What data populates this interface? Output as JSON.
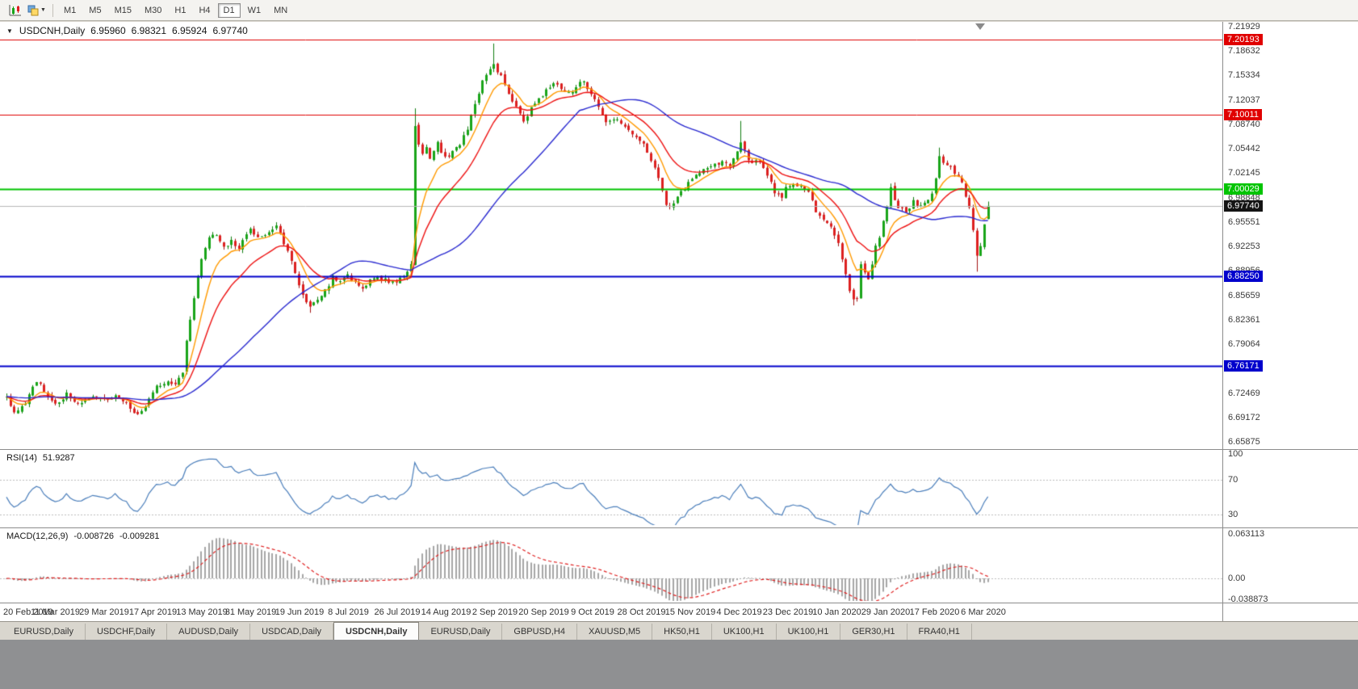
{
  "toolbar": {
    "icons": [
      {
        "name": "chart-type-icon"
      },
      {
        "name": "templates-icon"
      }
    ],
    "timeframes": [
      {
        "label": "M1",
        "active": false
      },
      {
        "label": "M5",
        "active": false
      },
      {
        "label": "M15",
        "active": false
      },
      {
        "label": "M30",
        "active": false
      },
      {
        "label": "H1",
        "active": false
      },
      {
        "label": "H4",
        "active": false
      },
      {
        "label": "D1",
        "active": true
      },
      {
        "label": "W1",
        "active": false
      },
      {
        "label": "MN",
        "active": false
      }
    ]
  },
  "chart": {
    "title": {
      "collapse_icon": "▼",
      "symbol": "USDCNH,Daily",
      "open": "6.95960",
      "high": "6.98321",
      "low": "6.95924",
      "close": "6.97740"
    },
    "price_scale": {
      "ticks": [
        "7.21929",
        "7.18632",
        "7.15334",
        "7.12037",
        "7.08740",
        "7.05442",
        "7.02145",
        "6.98848",
        "6.95551",
        "6.92253",
        "6.88956",
        "6.85659",
        "6.82361",
        "6.79064",
        "6.75767",
        "6.72469",
        "6.69172",
        "6.65875"
      ]
    },
    "levels": [
      {
        "label": "7.20193",
        "price": 7.20193,
        "color": "#e00000",
        "width": 1
      },
      {
        "label": "7.10011",
        "price": 7.10011,
        "color": "#e00000",
        "width": 1
      },
      {
        "label": "7.00029",
        "price": 7.00029,
        "color": "#00c400",
        "width": 2
      },
      {
        "label": "6.88250",
        "price": 6.8825,
        "color": "#0000cc",
        "width": 2
      },
      {
        "label": "6.76171",
        "price": 6.76171,
        "color": "#0000cc",
        "width": 2
      }
    ],
    "current_price": {
      "label": "6.97740",
      "price": 6.9774,
      "bg": "#141414",
      "line_color": "#b8b8b8"
    }
  },
  "rsi": {
    "label": "RSI(14)",
    "value": "51.9287",
    "scale": [
      "100",
      "70",
      "30"
    ],
    "scale_values": [
      100,
      70,
      30
    ],
    "levels": [
      70,
      30
    ],
    "color": "#4a7ebb"
  },
  "macd": {
    "label": "MACD(12,26,9)",
    "value": "-0.008726",
    "signal": "-0.009281",
    "scale": [
      "0.063113",
      "0.00",
      "-0.038873"
    ],
    "hist_color": "#a6a6a6",
    "signal_color": "#e02020"
  },
  "tabs": [
    {
      "label": "EURUSD,Daily",
      "active": false
    },
    {
      "label": "USDCHF,Daily",
      "active": false
    },
    {
      "label": "AUDUSD,Daily",
      "active": false
    },
    {
      "label": "USDCAD,Daily",
      "active": false
    },
    {
      "label": "USDCNH,Daily",
      "active": true
    },
    {
      "label": "EURUSD,Daily",
      "active": false
    },
    {
      "label": "GBPUSD,H4",
      "active": false
    },
    {
      "label": "XAUUSD,M5",
      "active": false
    },
    {
      "label": "HK50,H1",
      "active": false
    },
    {
      "label": "UK100,H1",
      "active": false
    },
    {
      "label": "UK100,H1",
      "active": false
    },
    {
      "label": "GER30,H1",
      "active": false
    },
    {
      "label": "FRA40,H1",
      "active": false
    }
  ],
  "chart_data": {
    "type": "candlestick",
    "symbol": "USDCNH",
    "timeframe": "Daily",
    "price_range": {
      "top": 7.22256,
      "bottom": 6.65114
    },
    "candle_count": 263,
    "x_labels": [
      "20 Feb 2019",
      "11 Mar 2019",
      "29 Mar 2019",
      "17 Apr 2019",
      "13 May 2019",
      "31 May 2019",
      "19 Jun 2019",
      "8 Jul 2019",
      "26 Jul 2019",
      "14 Aug 2019",
      "2 Sep 2019",
      "20 Sep 2019",
      "9 Oct 2019",
      "28 Oct 2019",
      "15 Nov 2019",
      "4 Dec 2019",
      "23 Dec 2019",
      "10 Jan 2020",
      "29 Jan 2020",
      "17 Feb 2020",
      "6 Mar 2020"
    ],
    "close_anchors": [
      [
        0,
        6.718
      ],
      [
        2,
        6.698
      ],
      [
        5,
        6.712
      ],
      [
        8,
        6.74
      ],
      [
        11,
        6.722
      ],
      [
        13,
        6.71
      ],
      [
        16,
        6.722
      ],
      [
        19,
        6.712
      ],
      [
        22,
        6.718
      ],
      [
        26,
        6.714
      ],
      [
        29,
        6.722
      ],
      [
        32,
        6.712
      ],
      [
        34,
        6.7
      ],
      [
        36,
        6.698
      ],
      [
        38,
        6.715
      ],
      [
        40,
        6.732
      ],
      [
        43,
        6.738
      ],
      [
        45,
        6.74
      ],
      [
        47,
        6.752
      ],
      [
        48,
        6.795
      ],
      [
        50,
        6.856
      ],
      [
        52,
        6.906
      ],
      [
        54,
        6.932
      ],
      [
        56,
        6.938
      ],
      [
        58,
        6.92
      ],
      [
        60,
        6.93
      ],
      [
        62,
        6.922
      ],
      [
        65,
        6.945
      ],
      [
        67,
        6.932
      ],
      [
        70,
        6.94
      ],
      [
        72,
        6.948
      ],
      [
        74,
        6.928
      ],
      [
        76,
        6.905
      ],
      [
        78,
        6.872
      ],
      [
        80,
        6.845
      ],
      [
        81,
        6.838
      ],
      [
        83,
        6.852
      ],
      [
        85,
        6.862
      ],
      [
        87,
        6.88
      ],
      [
        89,
        6.878
      ],
      [
        91,
        6.883
      ],
      [
        93,
        6.872
      ],
      [
        95,
        6.868
      ],
      [
        97,
        6.876
      ],
      [
        99,
        6.882
      ],
      [
        101,
        6.876
      ],
      [
        103,
        6.874
      ],
      [
        105,
        6.88
      ],
      [
        107,
        6.888
      ],
      [
        108,
        6.902
      ],
      [
        109,
        7.082
      ],
      [
        110,
        7.062
      ],
      [
        111,
        7.048
      ],
      [
        112,
        7.058
      ],
      [
        113,
        7.044
      ],
      [
        115,
        7.062
      ],
      [
        117,
        7.042
      ],
      [
        119,
        7.052
      ],
      [
        121,
        7.062
      ],
      [
        123,
        7.082
      ],
      [
        125,
        7.112
      ],
      [
        127,
        7.148
      ],
      [
        129,
        7.162
      ],
      [
        130,
        7.172
      ],
      [
        131,
        7.16
      ],
      [
        133,
        7.142
      ],
      [
        135,
        7.12
      ],
      [
        137,
        7.102
      ],
      [
        138,
        7.088
      ],
      [
        140,
        7.108
      ],
      [
        142,
        7.122
      ],
      [
        144,
        7.132
      ],
      [
        146,
        7.146
      ],
      [
        148,
        7.136
      ],
      [
        150,
        7.128
      ],
      [
        152,
        7.14
      ],
      [
        154,
        7.146
      ],
      [
        156,
        7.13
      ],
      [
        158,
        7.108
      ],
      [
        160,
        7.088
      ],
      [
        162,
        7.096
      ],
      [
        164,
        7.088
      ],
      [
        166,
        7.08
      ],
      [
        168,
        7.068
      ],
      [
        170,
        7.058
      ],
      [
        172,
        7.04
      ],
      [
        174,
        7.012
      ],
      [
        176,
        6.982
      ],
      [
        177,
        6.976
      ],
      [
        179,
        6.99
      ],
      [
        181,
        7.002
      ],
      [
        183,
        7.012
      ],
      [
        185,
        7.022
      ],
      [
        187,
        7.028
      ],
      [
        189,
        7.032
      ],
      [
        191,
        7.036
      ],
      [
        193,
        7.03
      ],
      [
        195,
        7.048
      ],
      [
        196,
        7.064
      ],
      [
        197,
        7.05
      ],
      [
        198,
        7.04
      ],
      [
        200,
        7.036
      ],
      [
        202,
        7.03
      ],
      [
        204,
        7.012
      ],
      [
        205,
        6.996
      ],
      [
        207,
        6.986
      ],
      [
        208,
        7.0
      ],
      [
        210,
        7.004
      ],
      [
        212,
        7.002
      ],
      [
        214,
        6.996
      ],
      [
        216,
        6.968
      ],
      [
        218,
        6.962
      ],
      [
        220,
        6.95
      ],
      [
        222,
        6.93
      ],
      [
        224,
        6.882
      ],
      [
        226,
        6.848
      ],
      [
        227,
        6.852
      ],
      [
        228,
        6.896
      ],
      [
        229,
        6.886
      ],
      [
        230,
        6.88
      ],
      [
        231,
        6.896
      ],
      [
        232,
        6.926
      ],
      [
        233,
        6.936
      ],
      [
        234,
        6.956
      ],
      [
        235,
        6.978
      ],
      [
        236,
        7.0
      ],
      [
        237,
        6.986
      ],
      [
        238,
        6.976
      ],
      [
        240,
        6.97
      ],
      [
        242,
        6.984
      ],
      [
        244,
        6.976
      ],
      [
        246,
        6.986
      ],
      [
        247,
        6.996
      ],
      [
        248,
        7.016
      ],
      [
        249,
        7.042
      ],
      [
        250,
        7.036
      ],
      [
        251,
        7.03
      ],
      [
        253,
        7.024
      ],
      [
        255,
        7.006
      ],
      [
        256,
        6.99
      ],
      [
        257,
        6.974
      ],
      [
        258,
        6.942
      ],
      [
        259,
        6.91
      ],
      [
        260,
        6.924
      ],
      [
        261,
        6.952
      ],
      [
        262,
        6.9774
      ]
    ],
    "noise_seed": 20,
    "noise_amp": 0.0035,
    "wick_amp": 0.005,
    "gap_amp": 0.0018,
    "high_overrides": [
      [
        109,
        7.109
      ],
      [
        130,
        7.1965
      ],
      [
        196,
        7.092
      ],
      [
        249,
        7.056
      ]
    ],
    "low_overrides": [
      [
        81,
        6.833
      ],
      [
        177,
        6.9725
      ],
      [
        226,
        6.843
      ],
      [
        259,
        6.8885
      ]
    ],
    "last_candle": {
      "open": 6.9596,
      "high": 6.98321,
      "low": 6.95924,
      "close": 6.9774
    },
    "colors": {
      "bull": "#19a519",
      "bull_wick": "#0f7d0f",
      "bear": "#dd2020",
      "bear_wick": "#a31212"
    },
    "moving_averages": [
      {
        "period": 8,
        "type": "ema",
        "color": "#ff9a00"
      },
      {
        "period": 18,
        "type": "ema",
        "color": "#ee1111"
      },
      {
        "period": 45,
        "type": "sma",
        "color": "#2a2ad0"
      }
    ],
    "indicators": [
      {
        "name": "RSI",
        "period": 14,
        "value": 51.9287
      },
      {
        "name": "MACD",
        "fast": 12,
        "slow": 26,
        "signal": 9,
        "value": -0.008726,
        "signal_value": -0.009281
      }
    ]
  }
}
